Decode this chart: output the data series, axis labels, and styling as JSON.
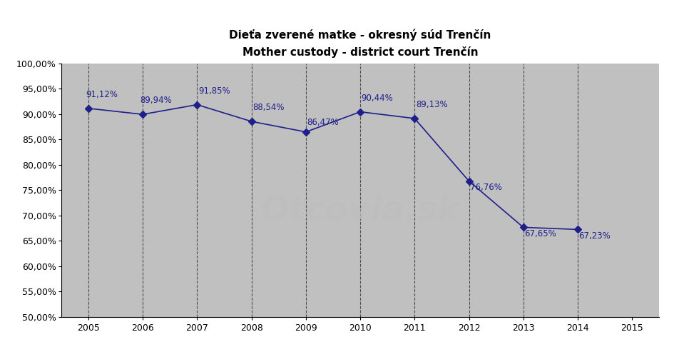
{
  "title_line1": "Dieťa zverené matke - okresný súd Trenčín",
  "title_line2": "Mother custody - district court Trenčín",
  "years": [
    2005,
    2006,
    2007,
    2008,
    2009,
    2010,
    2011,
    2012,
    2013,
    2014
  ],
  "values": [
    0.9112,
    0.8994,
    0.9185,
    0.8854,
    0.8647,
    0.9044,
    0.8913,
    0.7676,
    0.6765,
    0.6723
  ],
  "labels": [
    "91,12%",
    "89,94%",
    "91,85%",
    "88,54%",
    "86,47%",
    "90,44%",
    "89,13%",
    "76,76%",
    "67,65%",
    "67,23%"
  ],
  "label_ha": [
    "left",
    "left",
    "left",
    "left",
    "left",
    "left",
    "left",
    "left",
    "left",
    "left"
  ],
  "label_xoff": [
    -0.05,
    -0.05,
    0.02,
    0.02,
    0.02,
    0.02,
    0.02,
    0.02,
    0.02,
    0.02
  ],
  "label_yoff": [
    0.018,
    0.018,
    0.018,
    0.018,
    0.01,
    0.018,
    0.018,
    -0.022,
    -0.022,
    -0.022
  ],
  "xlim": [
    2004.5,
    2015.5
  ],
  "ylim": [
    0.5,
    1.0
  ],
  "yticks": [
    0.5,
    0.55,
    0.6,
    0.65,
    0.7,
    0.75,
    0.8,
    0.85,
    0.9,
    0.95,
    1.0
  ],
  "ytick_labels": [
    "50,00%",
    "55,00%",
    "60,00%",
    "65,00%",
    "70,00%",
    "75,00%",
    "80,00%",
    "85,00%",
    "90,00%",
    "95,00%",
    "100,00%"
  ],
  "xticks": [
    2005,
    2006,
    2007,
    2008,
    2009,
    2010,
    2011,
    2012,
    2013,
    2014,
    2015
  ],
  "vgrid_years": [
    2005,
    2006,
    2007,
    2008,
    2009,
    2010,
    2011,
    2012,
    2013,
    2014
  ],
  "line_color": "#1F1F8B",
  "marker_color": "#1F1F8B",
  "plot_bg_color": "#C0C0C0",
  "outer_bg_color": "#FFFFFF",
  "watermark_color": "#BEBEBE",
  "title_fontsize": 11,
  "label_fontsize": 8.5,
  "tick_fontsize": 9
}
